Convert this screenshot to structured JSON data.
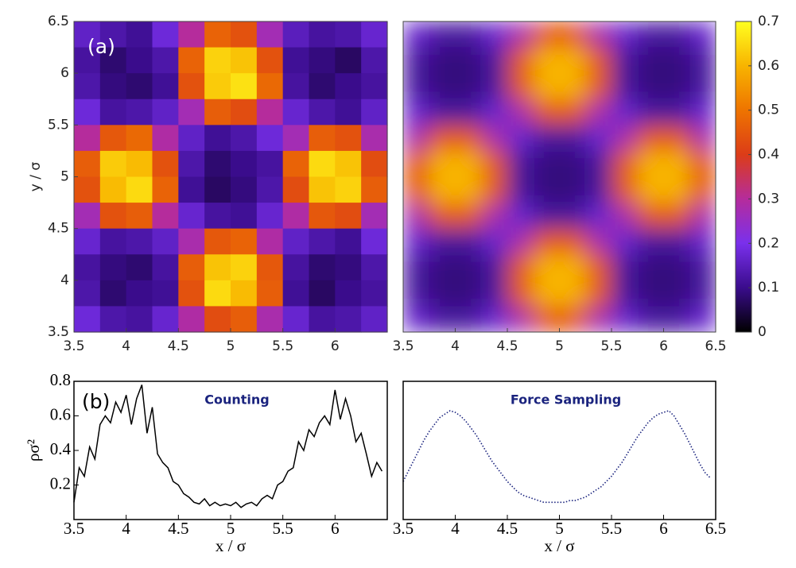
{
  "chart_data": [
    {
      "type": "heatmap",
      "annotation": "(a)",
      "y_label": "y / σ",
      "xlim": [
        3.5,
        6.5
      ],
      "ylim": [
        3.5,
        6.5
      ],
      "xticks": [
        3.5,
        4,
        4.5,
        5,
        5.5,
        6
      ],
      "yticks": [
        3.5,
        4,
        4.5,
        5,
        5.5,
        6,
        6.5
      ],
      "x": [
        3.625,
        3.875,
        4.125,
        4.375,
        4.625,
        4.875,
        5.125,
        5.375,
        5.625,
        5.875,
        6.125,
        6.375
      ],
      "y": [
        6.375,
        6.125,
        5.875,
        5.625,
        5.375,
        5.125,
        4.875,
        4.625,
        4.375,
        4.125,
        3.875,
        3.625
      ],
      "values": [
        [
          0.16,
          0.13,
          0.11,
          0.18,
          0.3,
          0.47,
          0.44,
          0.27,
          0.15,
          0.12,
          0.13,
          0.17
        ],
        [
          0.12,
          0.08,
          0.1,
          0.13,
          0.47,
          0.64,
          0.62,
          0.44,
          0.11,
          0.09,
          0.07,
          0.13
        ],
        [
          0.13,
          0.09,
          0.08,
          0.11,
          0.44,
          0.63,
          0.66,
          0.48,
          0.12,
          0.08,
          0.1,
          0.12
        ],
        [
          0.18,
          0.12,
          0.13,
          0.16,
          0.27,
          0.46,
          0.43,
          0.3,
          0.17,
          0.13,
          0.11,
          0.16
        ],
        [
          0.3,
          0.45,
          0.48,
          0.29,
          0.16,
          0.11,
          0.13,
          0.18,
          0.27,
          0.46,
          0.44,
          0.28
        ],
        [
          0.46,
          0.63,
          0.61,
          0.44,
          0.13,
          0.08,
          0.1,
          0.12,
          0.47,
          0.65,
          0.62,
          0.43
        ],
        [
          0.44,
          0.61,
          0.65,
          0.47,
          0.11,
          0.07,
          0.09,
          0.13,
          0.43,
          0.62,
          0.64,
          0.46
        ],
        [
          0.27,
          0.44,
          0.46,
          0.3,
          0.17,
          0.12,
          0.11,
          0.17,
          0.29,
          0.45,
          0.43,
          0.27
        ],
        [
          0.17,
          0.12,
          0.13,
          0.16,
          0.28,
          0.45,
          0.47,
          0.29,
          0.16,
          0.13,
          0.11,
          0.18
        ],
        [
          0.12,
          0.09,
          0.08,
          0.12,
          0.46,
          0.62,
          0.64,
          0.45,
          0.12,
          0.08,
          0.09,
          0.13
        ],
        [
          0.13,
          0.08,
          0.1,
          0.11,
          0.44,
          0.65,
          0.61,
          0.46,
          0.11,
          0.07,
          0.1,
          0.12
        ],
        [
          0.18,
          0.13,
          0.12,
          0.17,
          0.29,
          0.43,
          0.46,
          0.28,
          0.17,
          0.12,
          0.13,
          0.16
        ]
      ]
    },
    {
      "type": "heatmap",
      "smooth": true,
      "xlim": [
        3.5,
        6.5
      ],
      "ylim": [
        3.5,
        6.5
      ],
      "xticks": [
        3.5,
        4,
        4.5,
        5,
        5.5,
        6,
        6.5
      ],
      "x": [
        3.625,
        3.875,
        4.125,
        4.375,
        4.625,
        4.875,
        5.125,
        5.375,
        5.625,
        5.875,
        6.125,
        6.375
      ],
      "y": [
        6.375,
        6.125,
        5.875,
        5.625,
        5.375,
        5.125,
        4.875,
        4.625,
        4.375,
        4.125,
        3.875,
        3.625
      ],
      "values": [
        [
          0.17,
          0.12,
          0.12,
          0.17,
          0.28,
          0.45,
          0.45,
          0.28,
          0.17,
          0.12,
          0.12,
          0.17
        ],
        [
          0.12,
          0.09,
          0.09,
          0.12,
          0.45,
          0.6,
          0.6,
          0.45,
          0.12,
          0.09,
          0.09,
          0.12
        ],
        [
          0.12,
          0.09,
          0.09,
          0.12,
          0.45,
          0.6,
          0.6,
          0.45,
          0.12,
          0.09,
          0.09,
          0.12
        ],
        [
          0.17,
          0.12,
          0.12,
          0.17,
          0.28,
          0.45,
          0.45,
          0.28,
          0.17,
          0.12,
          0.12,
          0.17
        ],
        [
          0.28,
          0.45,
          0.45,
          0.28,
          0.17,
          0.12,
          0.12,
          0.17,
          0.28,
          0.45,
          0.45,
          0.28
        ],
        [
          0.45,
          0.6,
          0.6,
          0.45,
          0.12,
          0.09,
          0.09,
          0.12,
          0.45,
          0.6,
          0.6,
          0.45
        ],
        [
          0.45,
          0.6,
          0.6,
          0.45,
          0.12,
          0.09,
          0.09,
          0.12,
          0.45,
          0.6,
          0.6,
          0.45
        ],
        [
          0.28,
          0.45,
          0.45,
          0.28,
          0.17,
          0.12,
          0.12,
          0.17,
          0.28,
          0.45,
          0.45,
          0.28
        ],
        [
          0.17,
          0.12,
          0.12,
          0.17,
          0.28,
          0.45,
          0.45,
          0.28,
          0.17,
          0.12,
          0.12,
          0.17
        ],
        [
          0.12,
          0.09,
          0.09,
          0.12,
          0.45,
          0.6,
          0.6,
          0.45,
          0.12,
          0.09,
          0.09,
          0.12
        ],
        [
          0.12,
          0.09,
          0.09,
          0.12,
          0.45,
          0.6,
          0.6,
          0.45,
          0.12,
          0.09,
          0.09,
          0.12
        ],
        [
          0.17,
          0.12,
          0.12,
          0.17,
          0.28,
          0.45,
          0.45,
          0.28,
          0.17,
          0.12,
          0.12,
          0.17
        ]
      ],
      "colorbar": {
        "zlim": [
          0,
          0.7
        ],
        "zticks": [
          0,
          0.1,
          0.2,
          0.3,
          0.4,
          0.5,
          0.6,
          0.7
        ],
        "colormap": [
          "#000000",
          "#3a0c8c",
          "#7a30ec",
          "#b52c9c",
          "#dc3c18",
          "#ee7400",
          "#f8b400",
          "#ffff20"
        ]
      }
    },
    {
      "type": "line",
      "title": "Counting",
      "annotation": "(b)",
      "y_label": "ρσ²",
      "x_label": "x / σ",
      "xlim": [
        3.5,
        6.5
      ],
      "ylim": [
        0,
        0.8
      ],
      "xticks": [
        3.5,
        4,
        4.5,
        5,
        5.5,
        6
      ],
      "yticks": [
        0.2,
        0.4,
        0.6,
        0.8
      ],
      "x": [
        3.5,
        3.55,
        3.6,
        3.65,
        3.7,
        3.75,
        3.8,
        3.85,
        3.9,
        3.95,
        4,
        4.05,
        4.1,
        4.15,
        4.2,
        4.25,
        4.3,
        4.35,
        4.4,
        4.45,
        4.5,
        4.55,
        4.6,
        4.65,
        4.7,
        4.75,
        4.8,
        4.85,
        4.9,
        4.95,
        5,
        5.05,
        5.1,
        5.15,
        5.2,
        5.25,
        5.3,
        5.35,
        5.4,
        5.45,
        5.5,
        5.55,
        5.6,
        5.65,
        5.7,
        5.75,
        5.8,
        5.85,
        5.9,
        5.95,
        6,
        6.05,
        6.1,
        6.15,
        6.2,
        6.25,
        6.3,
        6.35,
        6.4,
        6.45
      ],
      "series": [
        {
          "color": "#000000",
          "style": "solid",
          "values": [
            0.1,
            0.3,
            0.25,
            0.42,
            0.35,
            0.55,
            0.6,
            0.56,
            0.68,
            0.62,
            0.72,
            0.55,
            0.7,
            0.78,
            0.5,
            0.65,
            0.38,
            0.33,
            0.3,
            0.22,
            0.2,
            0.15,
            0.13,
            0.1,
            0.09,
            0.12,
            0.08,
            0.1,
            0.08,
            0.09,
            0.08,
            0.1,
            0.07,
            0.09,
            0.1,
            0.08,
            0.12,
            0.14,
            0.12,
            0.2,
            0.22,
            0.28,
            0.3,
            0.45,
            0.4,
            0.52,
            0.48,
            0.56,
            0.6,
            0.55,
            0.75,
            0.58,
            0.7,
            0.6,
            0.45,
            0.5,
            0.38,
            0.25,
            0.33,
            0.28
          ]
        }
      ]
    },
    {
      "type": "line",
      "title": "Force Sampling",
      "x_label": "x / σ",
      "xlim": [
        3.5,
        6.5
      ],
      "ylim": [
        0,
        0.8
      ],
      "xticks": [
        3.5,
        4,
        4.5,
        5,
        5.5,
        6,
        6.5
      ],
      "x": [
        3.5,
        3.55,
        3.6,
        3.65,
        3.7,
        3.75,
        3.8,
        3.85,
        3.9,
        3.95,
        4,
        4.05,
        4.1,
        4.15,
        4.2,
        4.25,
        4.3,
        4.35,
        4.4,
        4.45,
        4.5,
        4.55,
        4.6,
        4.65,
        4.7,
        4.75,
        4.8,
        4.85,
        4.9,
        4.95,
        5,
        5.05,
        5.1,
        5.15,
        5.2,
        5.25,
        5.3,
        5.35,
        5.4,
        5.45,
        5.5,
        5.55,
        5.6,
        5.65,
        5.7,
        5.75,
        5.8,
        5.85,
        5.9,
        5.95,
        6,
        6.05,
        6.1,
        6.15,
        6.2,
        6.25,
        6.3,
        6.35,
        6.4,
        6.45
      ],
      "series": [
        {
          "color": "#1a237e",
          "style": "dotted",
          "values": [
            0.22,
            0.28,
            0.34,
            0.4,
            0.46,
            0.51,
            0.55,
            0.59,
            0.61,
            0.63,
            0.62,
            0.6,
            0.57,
            0.53,
            0.49,
            0.44,
            0.39,
            0.34,
            0.3,
            0.26,
            0.22,
            0.19,
            0.16,
            0.14,
            0.13,
            0.12,
            0.11,
            0.1,
            0.1,
            0.1,
            0.1,
            0.1,
            0.11,
            0.11,
            0.12,
            0.13,
            0.15,
            0.17,
            0.19,
            0.22,
            0.25,
            0.29,
            0.33,
            0.38,
            0.43,
            0.48,
            0.52,
            0.56,
            0.59,
            0.61,
            0.62,
            0.63,
            0.6,
            0.55,
            0.5,
            0.44,
            0.38,
            0.32,
            0.27,
            0.24
          ]
        }
      ]
    }
  ]
}
